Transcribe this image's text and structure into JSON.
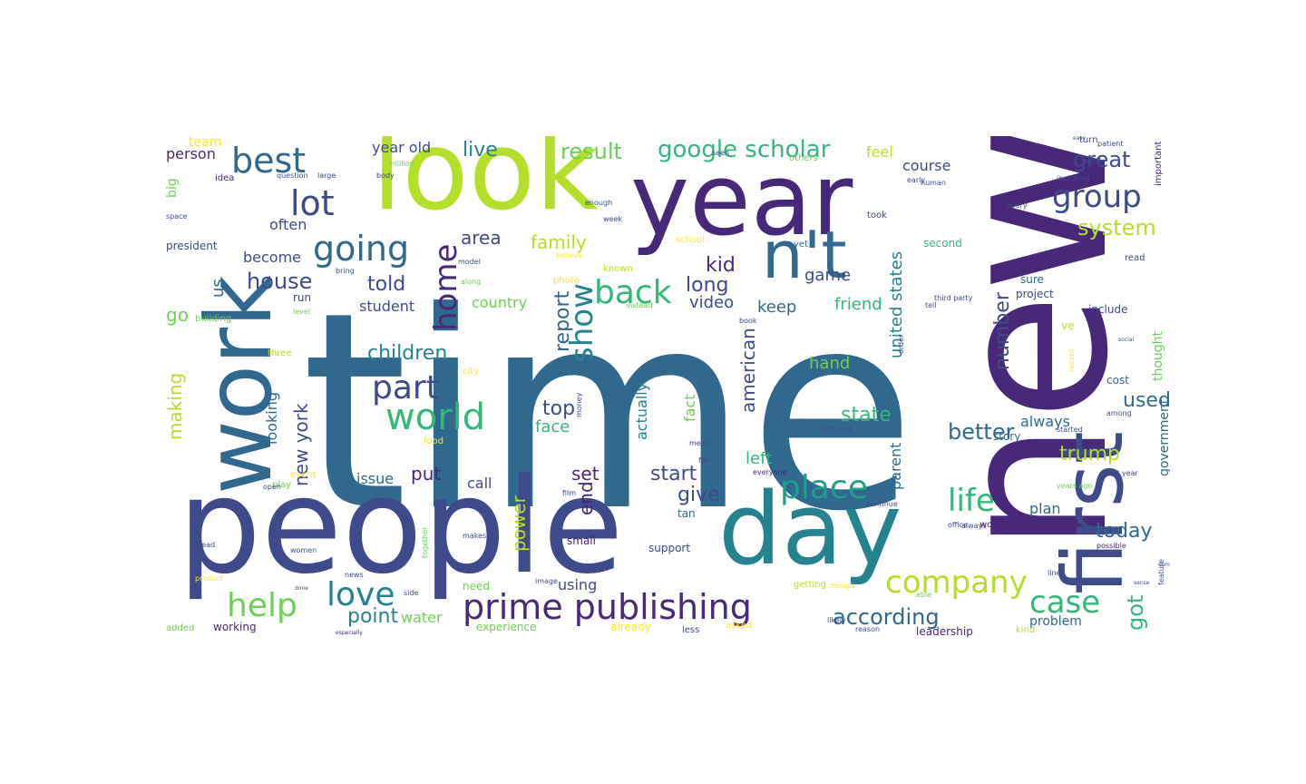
{
  "palette": {
    "dark_purple": "#482878",
    "indigo": "#3e4a89",
    "blue": "#31688e",
    "teal": "#26828e",
    "teal_green": "#1f9e89",
    "green": "#35b779",
    "lime": "#6ece58",
    "yellow_green": "#b5de2b",
    "yellow": "#fde725"
  },
  "words": [
    {
      "text": "time",
      "color": "#31688e"
    },
    {
      "text": "new",
      "color": "#482878"
    },
    {
      "text": "people",
      "color": "#3e4a89"
    },
    {
      "text": "look",
      "color": "#b5de2b"
    },
    {
      "text": "year",
      "color": "#482878"
    },
    {
      "text": "work",
      "color": "#31688e"
    },
    {
      "text": "day",
      "color": "#26828e"
    },
    {
      "text": "first",
      "color": "#3e4a89"
    },
    {
      "text": "n't",
      "color": "#31688e"
    },
    {
      "text": "prime publishing",
      "color": "#482878"
    },
    {
      "text": "world",
      "color": "#35b779"
    },
    {
      "text": "part",
      "color": "#3e4a89"
    },
    {
      "text": "place",
      "color": "#1f9e89"
    },
    {
      "text": "company",
      "color": "#b5de2b"
    },
    {
      "text": "case",
      "color": "#35b779"
    },
    {
      "text": "life",
      "color": "#35b779"
    },
    {
      "text": "back",
      "color": "#35b779"
    },
    {
      "text": "going",
      "color": "#31688e"
    },
    {
      "text": "lot",
      "color": "#3e4a89"
    },
    {
      "text": "best",
      "color": "#31688e"
    },
    {
      "text": "group",
      "color": "#3e4a89"
    },
    {
      "text": "love",
      "color": "#26828e"
    },
    {
      "text": "help",
      "color": "#6ece58"
    },
    {
      "text": "show",
      "color": "#26828e"
    },
    {
      "text": "home",
      "color": "#482878"
    },
    {
      "text": "google scholar",
      "color": "#35b779"
    },
    {
      "text": "result",
      "color": "#6ece58"
    },
    {
      "text": "great",
      "color": "#3e4a89"
    },
    {
      "text": "system",
      "color": "#b5de2b"
    },
    {
      "text": "children",
      "color": "#26828e"
    },
    {
      "text": "family",
      "color": "#b5de2b"
    },
    {
      "text": "house",
      "color": "#3e4a89"
    },
    {
      "text": "told",
      "color": "#3e4a89"
    },
    {
      "text": "area",
      "color": "#3e4a89"
    },
    {
      "text": "live",
      "color": "#26828e"
    },
    {
      "text": "kid",
      "color": "#482878"
    },
    {
      "text": "long",
      "color": "#3e4a89"
    },
    {
      "text": "report",
      "color": "#31688e"
    },
    {
      "text": "top",
      "color": "#3e4a89"
    },
    {
      "text": "point",
      "color": "#26828e"
    },
    {
      "text": "water",
      "color": "#6ece58"
    },
    {
      "text": "according",
      "color": "#31688e"
    },
    {
      "text": "got",
      "color": "#35b779"
    },
    {
      "text": "today",
      "color": "#31688e"
    },
    {
      "text": "trump",
      "color": "#b5de2b"
    },
    {
      "text": "used",
      "color": "#31688e"
    },
    {
      "text": "state",
      "color": "#35b779"
    },
    {
      "text": "better",
      "color": "#31688e"
    },
    {
      "text": "always",
      "color": "#31688e"
    },
    {
      "text": "number",
      "color": "#3e4a89"
    },
    {
      "text": "united states",
      "color": "#26828e"
    },
    {
      "text": "american",
      "color": "#3e4a89"
    },
    {
      "text": "start",
      "color": "#3e4a89"
    },
    {
      "text": "set",
      "color": "#482878"
    },
    {
      "text": "give",
      "color": "#3e4a89"
    },
    {
      "text": "power",
      "color": "#b5de2b"
    },
    {
      "text": "end",
      "color": "#482878"
    },
    {
      "text": "put",
      "color": "#482878"
    },
    {
      "text": "new york",
      "color": "#3e4a89"
    },
    {
      "text": "making",
      "color": "#b5de2b"
    },
    {
      "text": "looking",
      "color": "#31688e"
    },
    {
      "text": "us",
      "color": "#31688e"
    },
    {
      "text": "go",
      "color": "#6ece58"
    },
    {
      "text": "video",
      "color": "#3e4a89"
    },
    {
      "text": "keep",
      "color": "#31688e"
    },
    {
      "text": "friend",
      "color": "#35b779"
    },
    {
      "text": "game",
      "color": "#3e4a89"
    },
    {
      "text": "hand",
      "color": "#6ece58"
    },
    {
      "text": "left",
      "color": "#35b779"
    },
    {
      "text": "fact",
      "color": "#6ece58"
    },
    {
      "text": "actually",
      "color": "#26828e"
    },
    {
      "text": "face",
      "color": "#35b779"
    },
    {
      "text": "country",
      "color": "#6ece58"
    },
    {
      "text": "student",
      "color": "#3e4a89"
    },
    {
      "text": "become",
      "color": "#3e4a89"
    },
    {
      "text": "often",
      "color": "#3e4a89"
    },
    {
      "text": "person",
      "color": "#482878"
    },
    {
      "text": "team",
      "color": "#fde725"
    },
    {
      "text": "big",
      "color": "#6ece58"
    },
    {
      "text": "year old",
      "color": "#3e4a89"
    },
    {
      "text": "feel",
      "color": "#b5de2b"
    },
    {
      "text": "course",
      "color": "#3e4a89"
    },
    {
      "text": "thought",
      "color": "#6ece58"
    },
    {
      "text": "government",
      "color": "#31688e"
    },
    {
      "text": "plan",
      "color": "#31688e"
    },
    {
      "text": "story",
      "color": "#31688e"
    },
    {
      "text": "parent",
      "color": "#31688e"
    },
    {
      "text": "issue",
      "color": "#31688e"
    },
    {
      "text": "call",
      "color": "#3e4a89"
    },
    {
      "text": "using",
      "color": "#3e4a89"
    },
    {
      "text": "experience",
      "color": "#6ece58"
    },
    {
      "text": "problem",
      "color": "#31688e"
    },
    {
      "text": "working",
      "color": "#482878"
    },
    {
      "text": "added",
      "color": "#6ece58"
    },
    {
      "text": "support",
      "color": "#3e4a89"
    },
    {
      "text": "small",
      "color": "#482878"
    },
    {
      "text": "tan",
      "color": "#31688e"
    },
    {
      "text": "project",
      "color": "#3e4a89"
    },
    {
      "text": "include",
      "color": "#3e4a89"
    },
    {
      "text": "cost",
      "color": "#31688e"
    },
    {
      "text": "second",
      "color": "#35b779"
    },
    {
      "text": "took",
      "color": "#3e4a89"
    },
    {
      "text": "turn",
      "color": "#3e4a89"
    },
    {
      "text": "president",
      "color": "#3e4a89"
    },
    {
      "text": "building",
      "color": "#6ece58"
    },
    {
      "text": "three",
      "color": "#b5de2b"
    },
    {
      "text": "idea",
      "color": "#482878"
    },
    {
      "text": "space",
      "color": "#3e4a89"
    },
    {
      "text": "important",
      "color": "#482878"
    },
    {
      "text": "yet",
      "color": "#31688e"
    },
    {
      "text": "school",
      "color": "#fde725"
    },
    {
      "text": "known",
      "color": "#b5de2b"
    },
    {
      "text": "photo",
      "color": "#fde725"
    },
    {
      "text": "model",
      "color": "#3e4a89"
    },
    {
      "text": "along",
      "color": "#6ece58"
    },
    {
      "text": "instead",
      "color": "#6ece58"
    },
    {
      "text": "week",
      "color": "#3e4a89"
    },
    {
      "text": "every",
      "color": "#3e4a89"
    },
    {
      "text": "sure",
      "color": "#31688e"
    },
    {
      "text": "others",
      "color": "#6ece58"
    },
    {
      "text": "city",
      "color": "#fde725"
    },
    {
      "text": "food",
      "color": "#fde725"
    },
    {
      "text": "event",
      "color": "#fde725"
    },
    {
      "text": "play",
      "color": "#6ece58"
    },
    {
      "text": "lead",
      "color": "#3e4a89"
    },
    {
      "text": "product",
      "color": "#fde725"
    },
    {
      "text": "done",
      "color": "#3e4a89"
    },
    {
      "text": "getting",
      "color": "#b5de2b"
    },
    {
      "text": "already",
      "color": "#fde725"
    },
    {
      "text": "less",
      "color": "#3e4a89"
    },
    {
      "text": "asked",
      "color": "#fde725"
    },
    {
      "text": "likely",
      "color": "#3e4a89"
    },
    {
      "text": "reason",
      "color": "#3e4a89"
    },
    {
      "text": "kind",
      "color": "#b5de2b"
    },
    {
      "text": "possible",
      "color": "#482878"
    },
    {
      "text": "office",
      "color": "#3e4a89"
    },
    {
      "text": "women",
      "color": "#3e4a89"
    },
    {
      "text": "able",
      "color": "#6ece58"
    },
    {
      "text": "line",
      "color": "#3e4a89"
    },
    {
      "text": "feature",
      "color": "#3e4a89"
    },
    {
      "text": "third party",
      "color": "#3e4a89"
    },
    {
      "text": "last year",
      "color": "#3e4a89"
    },
    {
      "text": "years ago",
      "color": "#6ece58"
    },
    {
      "text": "among",
      "color": "#3e4a89"
    },
    {
      "text": "different",
      "color": "#3e4a89"
    },
    {
      "text": "started",
      "color": "#3e4a89"
    },
    {
      "text": "everyone",
      "color": "#482878"
    },
    {
      "text": "million",
      "color": "#6ece58"
    },
    {
      "text": "question",
      "color": "#3e4a89"
    },
    {
      "text": "large",
      "color": "#3e4a89"
    },
    {
      "text": "body",
      "color": "#3e4a89"
    },
    {
      "text": "human",
      "color": "#3e4a89"
    },
    {
      "text": "including",
      "color": "#3e4a89"
    },
    {
      "text": "enough",
      "color": "#3e4a89"
    },
    {
      "text": "design",
      "color": "#fde725"
    },
    {
      "text": "continue",
      "color": "#3e4a89"
    },
    {
      "text": "especially",
      "color": "#482878"
    },
    {
      "text": "order",
      "color": "#3e4a89"
    },
    {
      "text": "need",
      "color": "#6ece58"
    },
    {
      "text": "believe",
      "color": "#fde725"
    },
    {
      "text": "bring",
      "color": "#3e4a89"
    },
    {
      "text": "always",
      "color": "#3e4a89"
    },
    {
      "text": "film",
      "color": "#3e4a89"
    },
    {
      "text": "makes",
      "color": "#3e4a89"
    },
    {
      "text": "together",
      "color": "#6ece58"
    },
    {
      "text": "level",
      "color": "#6ece58"
    },
    {
      "text": "run",
      "color": "#3e4a89"
    },
    {
      "text": "read",
      "color": "#3e4a89"
    },
    {
      "text": "open",
      "color": "#3e4a89"
    },
    {
      "text": "news",
      "color": "#3e4a89"
    },
    {
      "text": "side",
      "color": "#3e4a89"
    },
    {
      "text": "book",
      "color": "#3e4a89"
    },
    {
      "text": "tell",
      "color": "#3e4a89"
    },
    {
      "text": "ve",
      "color": "#b5de2b"
    },
    {
      "text": "money",
      "color": "#3e4a89"
    },
    {
      "text": "image",
      "color": "#3e4a89"
    },
    {
      "text": "patient",
      "color": "#3e4a89"
    },
    {
      "text": "went",
      "color": "#3e4a89"
    },
    {
      "text": "recent",
      "color": "#fde725"
    },
    {
      "text": "full",
      "color": "#3e4a89"
    },
    {
      "text": "mean",
      "color": "#3e4a89"
    },
    {
      "text": "seen",
      "color": "#3e4a89"
    },
    {
      "text": "women",
      "color": "#482878"
    },
    {
      "text": "early",
      "color": "#3e4a89"
    },
    {
      "text": "leadership",
      "color": "#482878"
    },
    {
      "text": "easy",
      "color": "#3e4a89"
    },
    {
      "text": "come",
      "color": "#3e4a89"
    },
    {
      "text": "sense",
      "color": "#3e4a89"
    },
    {
      "text": "social",
      "color": "#3e4a89"
    }
  ]
}
